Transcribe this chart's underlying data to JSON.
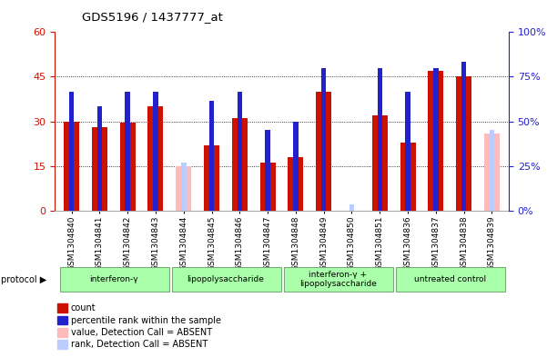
{
  "title": "GDS5196 / 1437777_at",
  "samples": [
    "GSM1304840",
    "GSM1304841",
    "GSM1304842",
    "GSM1304843",
    "GSM1304844",
    "GSM1304845",
    "GSM1304846",
    "GSM1304847",
    "GSM1304848",
    "GSM1304849",
    "GSM1304850",
    "GSM1304851",
    "GSM1304836",
    "GSM1304837",
    "GSM1304838",
    "GSM1304839"
  ],
  "count_values": [
    30,
    28,
    29.5,
    35,
    0,
    22,
    31,
    16,
    18,
    40,
    0,
    32,
    23,
    47,
    45,
    0
  ],
  "rank_values": [
    40,
    35,
    40,
    40,
    0,
    37,
    40,
    27,
    30,
    48,
    0,
    48,
    40,
    48,
    50,
    0
  ],
  "absent_count": [
    0,
    0,
    0,
    0,
    15,
    0,
    0,
    0,
    0,
    0,
    0,
    0,
    0,
    0,
    0,
    26
  ],
  "absent_rank": [
    0,
    0,
    0,
    0,
    16,
    0,
    0,
    0,
    0,
    0,
    2,
    0,
    0,
    0,
    0,
    27
  ],
  "protocols": [
    {
      "label": "interferon-γ",
      "start": 0,
      "end": 3
    },
    {
      "label": "lipopolysaccharide",
      "start": 4,
      "end": 7
    },
    {
      "label": "interferon-γ +\nlipopolysaccharide",
      "start": 8,
      "end": 11
    },
    {
      "label": "untreated control",
      "start": 12,
      "end": 15
    }
  ],
  "ylim_left": [
    0,
    60
  ],
  "ylim_right": [
    0,
    100
  ],
  "yticks_left": [
    0,
    15,
    30,
    45,
    60
  ],
  "yticks_right": [
    0,
    25,
    50,
    75,
    100
  ],
  "color_count": "#cc1100",
  "color_rank": "#2222cc",
  "color_absent_count": "#ffbbbb",
  "color_absent_rank": "#bbccff",
  "legend_items": [
    {
      "color": "#cc1100",
      "label": "count"
    },
    {
      "color": "#2222cc",
      "label": "percentile rank within the sample"
    },
    {
      "color": "#ffbbbb",
      "label": "value, Detection Call = ABSENT"
    },
    {
      "color": "#bbccff",
      "label": "rank, Detection Call = ABSENT"
    }
  ]
}
